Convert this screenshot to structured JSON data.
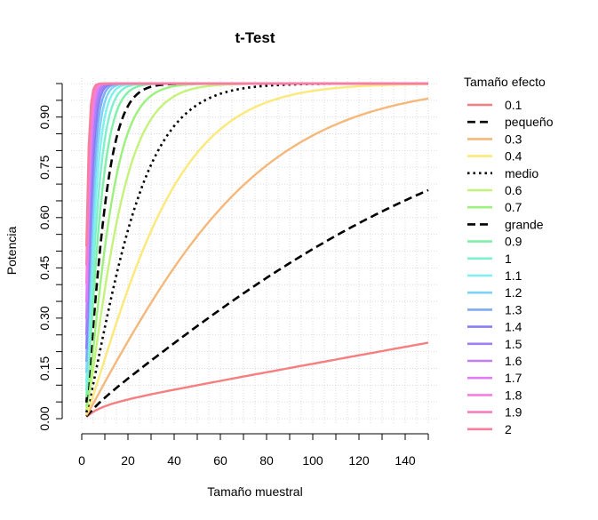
{
  "chart_data": {
    "type": "line",
    "title": "t-Test",
    "xlabel": "Tamaño muestral",
    "ylabel": "Potencia",
    "xlim": [
      0,
      150
    ],
    "ylim": [
      0,
      1
    ],
    "x_ticks": [
      "0",
      "20",
      "40",
      "60",
      "80",
      "100",
      "120",
      "140"
    ],
    "y_ticks": [
      "0.00",
      "0.15",
      "0.30",
      "0.45",
      "0.60",
      "0.75",
      "0.90"
    ],
    "grid": true,
    "legend_title": "Tamaño efecto",
    "legend_position": "right",
    "series": [
      {
        "name": "0.1",
        "effect": 0.1,
        "color": "#f77e7e",
        "style": "solid"
      },
      {
        "name": "pequeño",
        "effect": 0.2,
        "color": "#000000",
        "style": "dashed"
      },
      {
        "name": "0.3",
        "effect": 0.3,
        "color": "#f5b87a",
        "style": "solid"
      },
      {
        "name": "0.4",
        "effect": 0.4,
        "color": "#fce97a",
        "style": "solid"
      },
      {
        "name": "medio",
        "effect": 0.5,
        "color": "#000000",
        "style": "dotted"
      },
      {
        "name": "0.6",
        "effect": 0.6,
        "color": "#c4f27a",
        "style": "solid"
      },
      {
        "name": "0.7",
        "effect": 0.7,
        "color": "#9cf07e",
        "style": "solid"
      },
      {
        "name": "grande",
        "effect": 0.8,
        "color": "#000000",
        "style": "dashed"
      },
      {
        "name": "0.9",
        "effect": 0.9,
        "color": "#7ef0a8",
        "style": "solid"
      },
      {
        "name": "1",
        "effect": 1.0,
        "color": "#7ef0cf",
        "style": "solid"
      },
      {
        "name": "1.1",
        "effect": 1.1,
        "color": "#7ef0f0",
        "style": "solid"
      },
      {
        "name": "1.2",
        "effect": 1.2,
        "color": "#7ed2f5",
        "style": "solid"
      },
      {
        "name": "1.3",
        "effect": 1.3,
        "color": "#7eaaf5",
        "style": "solid"
      },
      {
        "name": "1.4",
        "effect": 1.4,
        "color": "#857ef5",
        "style": "solid"
      },
      {
        "name": "1.5",
        "effect": 1.5,
        "color": "#a27ef5",
        "style": "solid"
      },
      {
        "name": "1.6",
        "effect": 1.6,
        "color": "#c27ef5",
        "style": "solid"
      },
      {
        "name": "1.7",
        "effect": 1.7,
        "color": "#e27ef5",
        "style": "solid"
      },
      {
        "name": "1.8",
        "effect": 1.8,
        "color": "#f57ee2",
        "style": "solid"
      },
      {
        "name": "1.9",
        "effect": 1.9,
        "color": "#f57ec2",
        "style": "solid"
      },
      {
        "name": "2",
        "effect": 2.0,
        "color": "#f77e9c",
        "style": "solid"
      }
    ]
  }
}
